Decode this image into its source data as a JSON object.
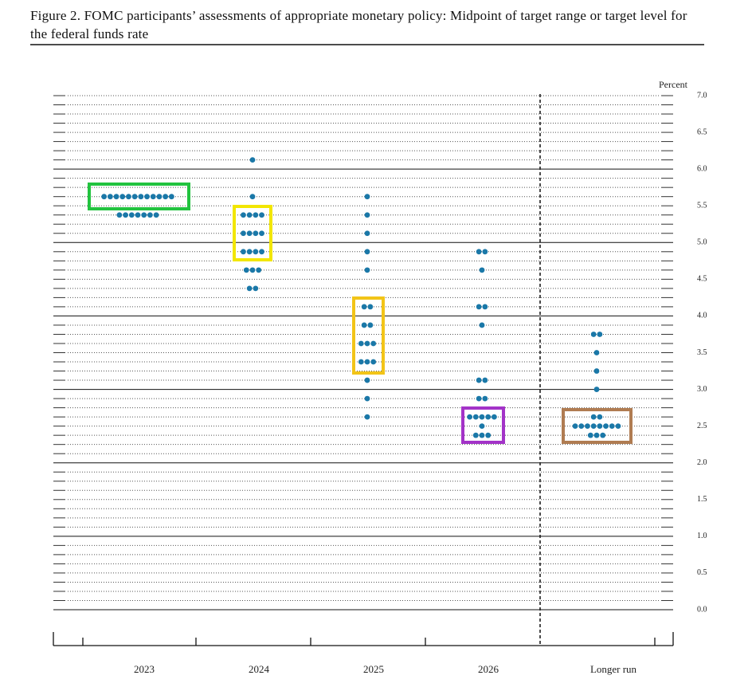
{
  "chart_data": {
    "type": "dot",
    "title": "Figure 2.  FOMC participants’ assessments of appropriate monetary policy: Midpoint of target range or target level for the federal funds rate",
    "y_label": "Percent",
    "categories": [
      "2023",
      "2024",
      "2025",
      "2026",
      "Longer run"
    ],
    "dots": [
      [
        {
          "value": 5.625,
          "count": 12
        },
        {
          "value": 5.375,
          "count": 7
        }
      ],
      [
        {
          "value": 6.125,
          "count": 1
        },
        {
          "value": 5.625,
          "count": 1
        },
        {
          "value": 5.375,
          "count": 4
        },
        {
          "value": 5.125,
          "count": 4
        },
        {
          "value": 4.875,
          "count": 4
        },
        {
          "value": 4.625,
          "count": 3
        },
        {
          "value": 4.375,
          "count": 2
        }
      ],
      [
        {
          "value": 5.625,
          "count": 1
        },
        {
          "value": 5.375,
          "count": 1
        },
        {
          "value": 5.125,
          "count": 1
        },
        {
          "value": 4.875,
          "count": 1
        },
        {
          "value": 4.625,
          "count": 1
        },
        {
          "value": 4.125,
          "count": 2
        },
        {
          "value": 3.875,
          "count": 2
        },
        {
          "value": 3.625,
          "count": 3
        },
        {
          "value": 3.375,
          "count": 3
        },
        {
          "value": 3.125,
          "count": 1
        },
        {
          "value": 2.875,
          "count": 1
        },
        {
          "value": 2.625,
          "count": 1
        }
      ],
      [
        {
          "value": 4.875,
          "count": 2
        },
        {
          "value": 4.625,
          "count": 1
        },
        {
          "value": 4.125,
          "count": 2
        },
        {
          "value": 3.875,
          "count": 1
        },
        {
          "value": 3.125,
          "count": 2
        },
        {
          "value": 2.875,
          "count": 2
        },
        {
          "value": 2.625,
          "count": 5
        },
        {
          "value": 2.5,
          "count": 1
        },
        {
          "value": 2.375,
          "count": 3
        }
      ],
      [
        {
          "value": 3.75,
          "count": 2
        },
        {
          "value": 3.5,
          "count": 1
        },
        {
          "value": 3.25,
          "count": 1
        },
        {
          "value": 3.0,
          "count": 1
        },
        {
          "value": 2.625,
          "count": 2
        },
        {
          "value": 2.5,
          "count": 8
        },
        {
          "value": 2.375,
          "count": 3
        }
      ]
    ],
    "color": "#1a78a8",
    "ylim": [
      0,
      7
    ],
    "yticks": [
      {
        "value": 0,
        "label": "0.0"
      },
      {
        "value": 0.5,
        "label": "0.5"
      },
      {
        "value": 1,
        "label": "1.0"
      },
      {
        "value": 1.5,
        "label": "1.5"
      },
      {
        "value": 2,
        "label": "2.0"
      },
      {
        "value": 2.5,
        "label": "2.5"
      },
      {
        "value": 3,
        "label": "3.0"
      },
      {
        "value": 3.5,
        "label": "3.5"
      },
      {
        "value": 4,
        "label": "4.0"
      },
      {
        "value": 4.5,
        "label": "4.5"
      },
      {
        "value": 5,
        "label": "5.0"
      },
      {
        "value": 5.5,
        "label": "5.5"
      },
      {
        "value": 6,
        "label": "6.0"
      },
      {
        "value": 6.5,
        "label": "6.5"
      },
      {
        "value": 7,
        "label": "7.0"
      }
    ],
    "minor_grid_step": 0.125,
    "grid": true
  }
}
